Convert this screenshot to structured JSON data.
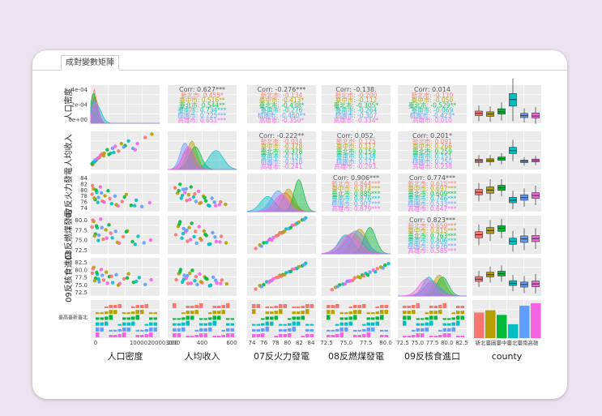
{
  "tab": {
    "label": "成對變數矩陣"
  },
  "chart_data": {
    "type": "scatter",
    "variables": [
      "人口密度",
      "人均收入",
      "07反火力發電",
      "08反燃煤發電",
      "09反核食進口",
      "county"
    ],
    "strip_labels": [
      "人口密度",
      "人均收入",
      "07反火力發電",
      "08反燃煤發電",
      "09反核食進口"
    ],
    "axis_ticks": {
      "density_x": [
        "0",
        "10000200003000"
      ],
      "income_x": [
        "200",
        "400",
        "600"
      ],
      "fire_x": [
        "74",
        "76",
        "78",
        "80",
        "82",
        "84"
      ],
      "coal_x": [
        "72.5",
        "75.0",
        "77.5",
        "80.0"
      ],
      "food_x": [
        "72.5",
        "75.0",
        "77.5",
        "80.0",
        "82.5"
      ],
      "county_x": "新北臺圖臺中臺北臺南高雄",
      "density_y": [
        "4e-04",
        "2e-04",
        "0e+00"
      ],
      "fire_y": [
        "84",
        "82",
        "80",
        "78",
        "76",
        "74"
      ],
      "coal_y": [
        "80.0",
        "77.5",
        "75.0",
        "72.5"
      ],
      "food_y": [
        "82.5",
        "80.0",
        "77.5",
        "75.0",
        "72.5"
      ],
      "county_y": "臺高臺新臺北"
    },
    "groups": [
      {
        "name": "新北市",
        "color": "#f8766d"
      },
      {
        "name": "臺中市",
        "color": "#b79f00"
      },
      {
        "name": "臺北市",
        "color": "#00ba38"
      },
      {
        "name": "臺南市",
        "color": "#00bfc4"
      },
      {
        "name": "桃園市",
        "color": "#619cff"
      },
      {
        "name": "高雄市",
        "color": "#f564e3"
      }
    ],
    "correlations": [
      {
        "pair": [
          1,
          0
        ],
        "header": "Corr: 0.627***",
        "lines": [
          "新北市: 0.455*",
          "臺中市: 0.516**",
          "臺北市: 0.544**",
          "臺南市: 0.734***",
          "桃園市: 0.725***",
          "高雄市: 0.651***"
        ]
      },
      {
        "pair": [
          2,
          0
        ],
        "header": "Corr: -0.276***",
        "lines": [
          "新北市: -0.134",
          "臺中市: -0.413*",
          "臺北市: -0.438*",
          "臺南市: -0.276",
          "桃園市: -0.460**",
          "高雄市: -0.350*"
        ]
      },
      {
        "pair": [
          3,
          0
        ],
        "header": "Corr: -0.138.",
        "lines": [
          "新北市: -0.200",
          "臺中市: -0.112",
          "臺北市: -0.305*",
          "臺南市: -0.264",
          "桃園市: -0.307",
          "高雄市: -0.334*"
        ]
      },
      {
        "pair": [
          4,
          0
        ],
        "header": "Corr: 0.014",
        "lines": [
          "新北市: -0.110",
          "臺中市: -0.050",
          "臺北市: -0.529**",
          "臺南市: -0.069",
          "桃園市: -0.423*",
          "高雄市: 0.010"
        ]
      },
      {
        "pair": [
          2,
          1
        ],
        "header": "Corr: -0.222**",
        "lines": [
          "新北市: -0.034",
          "臺中市: -0.378",
          "臺北市: -0.378",
          "臺南市: -0.131",
          "桃園市: -0.318",
          "高雄市: -0.241"
        ]
      },
      {
        "pair": [
          3,
          1
        ],
        "header": "Corr: 0.052.",
        "lines": [
          "新北市: 0.125",
          "臺中市: 0.117",
          "臺北市: 0.159",
          "臺南市: 0.138",
          "桃園市: 0.171",
          "高雄市: -0.293."
        ]
      },
      {
        "pair": [
          4,
          1
        ],
        "header": "Corr: 0.201*",
        "lines": [
          "新北市: 0.091",
          "臺中市: 0.266",
          "臺北市: 0.259",
          "臺南市: 0.151",
          "桃園市: 0.250",
          "高雄市: 0.238"
        ]
      },
      {
        "pair": [
          3,
          2
        ],
        "header": "Corr: 0.906***",
        "lines": [
          "新北市: 0.844***",
          "臺中市: 0.874***",
          "臺北市: 0.885***",
          "臺南市: 0.876***",
          "桃園市: 0.907***",
          "高雄市: 0.879***"
        ]
      },
      {
        "pair": [
          4,
          2
        ],
        "header": "Corr: 0.774***",
        "lines": [
          "新北市: 0.615***",
          "臺中市: 0.697***",
          "臺北市: 0.609***",
          "臺南市: 0.746***",
          "桃園市: 0.533***",
          "高雄市: 0.647***"
        ]
      },
      {
        "pair": [
          4,
          3
        ],
        "header": "Corr: 0.823***",
        "lines": [
          "新北市: 0.659***",
          "臺中市: 0.815***",
          "臺北市: 0.763***",
          "臺南市: 0.806***",
          "桃園市: 0.676***",
          "高雄市: 0.585***"
        ]
      }
    ],
    "scatter_points": [
      {
        "pair": [
          1,
          0
        ],
        "x": [
          800,
          1500,
          2200,
          2800,
          3600,
          4500,
          5200,
          6100,
          7400,
          9000,
          9800,
          11000,
          12500,
          13800,
          15500,
          17000,
          19000,
          21000,
          24500,
          27500,
          600,
          1200,
          2000,
          3000,
          3900,
          5800,
          8200,
          10400,
          14800,
          20000
        ],
        "y": [
          160,
          190,
          220,
          240,
          260,
          300,
          320,
          330,
          380,
          330,
          400,
          430,
          360,
          470,
          440,
          510,
          400,
          470,
          560,
          610,
          175,
          200,
          230,
          250,
          270,
          290,
          310,
          340,
          420,
          380
        ]
      },
      {
        "pair": [
          2,
          0
        ],
        "x": [
          600,
          1200,
          2000,
          2700,
          3500,
          4300,
          5200,
          6400,
          7800,
          9400,
          10900,
          12300,
          14100,
          16000,
          18200,
          20500,
          23000,
          26500,
          800,
          1600,
          2400,
          3200,
          4800,
          6000,
          8600,
          11500,
          15200,
          19800
        ],
        "y": [
          78.5,
          80.2,
          76.8,
          79.1,
          77.5,
          80.8,
          76.3,
          78.0,
          79.6,
          75.5,
          77.9,
          74.8,
          76.2,
          78.4,
          75.0,
          76.6,
          74.6,
          75.8,
          81.2,
          77.3,
          79.8,
          75.9,
          78.9,
          76.0,
          77.1,
          75.2,
          77.6,
          74.9
        ]
      },
      {
        "pair": [
          3,
          0
        ],
        "x": [
          600,
          1300,
          2100,
          2900,
          3700,
          4500,
          5600,
          6800,
          8200,
          9700,
          11200,
          12800,
          14600,
          16500,
          18800,
          21300,
          24000,
          27000,
          900,
          1700,
          2600,
          3400,
          5000,
          7200,
          9000,
          12000,
          16000,
          20000
        ],
        "y": [
          78.0,
          79.5,
          76.2,
          77.8,
          75.9,
          80.1,
          74.8,
          77.3,
          78.6,
          75.2,
          76.9,
          73.8,
          75.5,
          77.0,
          74.2,
          75.6,
          73.9,
          74.6,
          79.8,
          75.7,
          78.3,
          74.5,
          77.9,
          75.1,
          76.4,
          74.0,
          76.8,
          73.5
        ]
      },
      {
        "pair": [
          4,
          0
        ],
        "x": [
          700,
          1400,
          2200,
          3000,
          3800,
          4700,
          5800,
          7000,
          8400,
          9900,
          11500,
          13100,
          15000,
          17000,
          19300,
          21800,
          24500,
          27200,
          1000,
          1800,
          2700,
          3500,
          5200,
          7500,
          9300,
          12400,
          16400,
          20500
        ],
        "y": [
          79.2,
          81.0,
          77.6,
          78.8,
          76.5,
          80.3,
          77.0,
          79.5,
          78.1,
          76.2,
          78.7,
          75.9,
          77.4,
          79.0,
          76.3,
          77.8,
          75.6,
          77.1,
          80.6,
          76.8,
          79.4,
          77.3,
          78.5,
          76.0,
          78.2,
          75.4,
          77.7,
          76.6
        ]
      },
      {
        "pair": [
          2,
          1
        ],
        "x": [
          150,
          170,
          190,
          200,
          215,
          230,
          245,
          260,
          280,
          300,
          320,
          340,
          360,
          380,
          400,
          420,
          450,
          480,
          520,
          560,
          180,
          210,
          240,
          270,
          310,
          350,
          390,
          430,
          470,
          510
        ],
        "y": [
          80.5,
          78.8,
          81.6,
          77.2,
          80.0,
          79.0,
          76.5,
          78.3,
          80.8,
          77.6,
          76.2,
          79.4,
          75.8,
          77.9,
          76.4,
          75.0,
          77.2,
          74.9,
          76.1,
          75.3,
          79.6,
          78.1,
          80.2,
          76.8,
          78.6,
          75.6,
          77.4,
          74.8,
          76.0,
          75.2
        ]
      },
      {
        "pair": [
          3,
          1
        ],
        "x": [
          155,
          175,
          190,
          205,
          220,
          235,
          250,
          265,
          285,
          305,
          325,
          345,
          365,
          385,
          405,
          425,
          455,
          485,
          525,
          565,
          185,
          215,
          245,
          275,
          315,
          355,
          395,
          435,
          475,
          515
        ],
        "y": [
          76.0,
          78.2,
          79.4,
          75.1,
          77.6,
          76.8,
          74.3,
          77.9,
          79.0,
          75.5,
          73.8,
          78.1,
          74.6,
          77.0,
          75.8,
          73.5,
          76.5,
          74.2,
          75.6,
          73.9,
          78.8,
          76.3,
          77.2,
          74.7,
          76.9,
          75.0,
          76.1,
          73.6,
          75.4,
          74.1
        ]
      },
      {
        "pair": [
          4,
          1
        ],
        "x": [
          160,
          180,
          195,
          210,
          225,
          240,
          255,
          270,
          290,
          310,
          330,
          350,
          370,
          390,
          410,
          430,
          460,
          490,
          530,
          570,
          190,
          220,
          250,
          280,
          320,
          360,
          400,
          440,
          480,
          520
        ],
        "y": [
          77.1,
          79.0,
          80.3,
          76.4,
          78.5,
          77.6,
          75.9,
          79.2,
          80.1,
          76.8,
          75.6,
          78.9,
          76.2,
          78.0,
          77.3,
          75.2,
          77.9,
          76.1,
          77.0,
          75.8,
          79.6,
          77.2,
          78.4,
          76.0,
          78.1,
          76.5,
          77.6,
          75.4,
          76.9,
          75.9
        ]
      },
      {
        "pair": [
          3,
          2
        ],
        "x": [
          74.5,
          75.2,
          75.9,
          76.4,
          77.0,
          77.6,
          78.1,
          78.7,
          79.2,
          79.8,
          80.3,
          80.9,
          81.4,
          82.0,
          82.6,
          83.2,
          75.5,
          76.8,
          78.4,
          79.5,
          80.6,
          81.7,
          82.9,
          77.3,
          79.0
        ],
        "y": [
          72.4,
          73.3,
          73.9,
          74.0,
          74.9,
          75.3,
          75.7,
          76.5,
          76.6,
          77.5,
          77.6,
          78.5,
          78.7,
          79.3,
          79.9,
          80.4,
          73.0,
          74.6,
          75.9,
          76.9,
          77.9,
          79.0,
          80.0,
          74.6,
          76.4
        ]
      },
      {
        "pair": [
          4,
          2
        ],
        "x": [
          74.5,
          75.2,
          75.9,
          76.4,
          77.0,
          77.6,
          78.1,
          78.7,
          79.2,
          79.8,
          80.3,
          80.9,
          81.4,
          82.0,
          82.6,
          83.2,
          75.5,
          76.8,
          78.4,
          79.5,
          80.6,
          81.7,
          82.9,
          77.3,
          79.0
        ],
        "y": [
          74.2,
          75.3,
          75.6,
          76.5,
          76.7,
          77.4,
          77.8,
          78.5,
          78.7,
          79.3,
          79.6,
          80.4,
          80.6,
          81.2,
          81.5,
          82.3,
          74.9,
          76.3,
          77.9,
          78.7,
          79.7,
          80.7,
          81.8,
          76.9,
          78.2
        ]
      },
      {
        "pair": [
          4,
          3
        ],
        "x": [
          72.5,
          73.0,
          73.6,
          74.1,
          74.7,
          75.2,
          75.8,
          76.3,
          76.9,
          77.4,
          78.0,
          78.5,
          79.1,
          79.6,
          80.2,
          80.7,
          73.3,
          74.4,
          75.5,
          76.6,
          77.7,
          78.8,
          79.9,
          75.0,
          77.1
        ],
        "y": [
          74.0,
          74.7,
          75.5,
          75.7,
          76.6,
          76.8,
          77.7,
          78.0,
          78.6,
          79.1,
          79.5,
          80.2,
          80.6,
          81.1,
          81.7,
          82.2,
          74.9,
          75.8,
          76.9,
          77.8,
          78.6,
          79.6,
          80.8,
          76.7,
          78.3
        ]
      }
    ],
    "ranges": {
      "density": [
        0,
        31000
      ],
      "income": [
        90,
        650
      ],
      "fire": [
        73,
        85
      ],
      "coal": [
        71,
        81
      ],
      "food": [
        72,
        84
      ]
    },
    "county_counts": [
      11,
      12,
      10,
      6,
      14,
      15
    ],
    "box_rows": [
      [
        {
          "q1": 20,
          "med": 26,
          "q3": 32
        },
        {
          "q1": 18,
          "med": 24,
          "q3": 30
        },
        {
          "q1": 24,
          "med": 30,
          "q3": 38
        },
        {
          "q1": 45,
          "med": 62,
          "q3": 78
        },
        {
          "q1": 15,
          "med": 20,
          "q3": 26
        },
        {
          "q1": 14,
          "med": 19,
          "q3": 27
        }
      ],
      [
        {
          "q1": 200,
          "med": 225,
          "q3": 248
        },
        {
          "q1": 210,
          "med": 232,
          "q3": 255
        },
        {
          "q1": 232,
          "med": 258,
          "q3": 280
        },
        {
          "q1": 330,
          "med": 372,
          "q3": 420
        },
        {
          "q1": 200,
          "med": 218,
          "q3": 236
        },
        {
          "q1": 210,
          "med": 230,
          "q3": 250
        }
      ],
      [
        {
          "q1": 78.3,
          "med": 79.1,
          "q3": 80.0
        },
        {
          "q1": 78.8,
          "med": 79.8,
          "q3": 80.8
        },
        {
          "q1": 79.7,
          "med": 80.5,
          "q3": 81.3
        },
        {
          "q1": 75.8,
          "med": 76.6,
          "q3": 77.5
        },
        {
          "q1": 76.6,
          "med": 77.4,
          "q3": 78.3
        },
        {
          "q1": 77.2,
          "med": 78.1,
          "q3": 79.0
        }
      ],
      [
        {
          "q1": 75.2,
          "med": 76.0,
          "q3": 76.8
        },
        {
          "q1": 76.3,
          "med": 77.1,
          "q3": 77.9
        },
        {
          "q1": 76.9,
          "med": 77.7,
          "q3": 78.4
        },
        {
          "q1": 73.5,
          "med": 74.3,
          "q3": 75.1
        },
        {
          "q1": 74.0,
          "med": 74.9,
          "q3": 75.7
        },
        {
          "q1": 74.2,
          "med": 75.0,
          "q3": 75.8
        }
      ],
      [
        {
          "q1": 76.6,
          "med": 77.3,
          "q3": 78.1
        },
        {
          "q1": 78.0,
          "med": 78.7,
          "q3": 79.5
        },
        {
          "q1": 78.3,
          "med": 79.0,
          "q3": 79.8
        },
        {
          "q1": 75.3,
          "med": 76.0,
          "q3": 76.8
        },
        {
          "q1": 74.8,
          "med": 75.6,
          "q3": 76.4
        },
        {
          "q1": 74.9,
          "med": 75.8,
          "q3": 76.7
        }
      ]
    ]
  }
}
